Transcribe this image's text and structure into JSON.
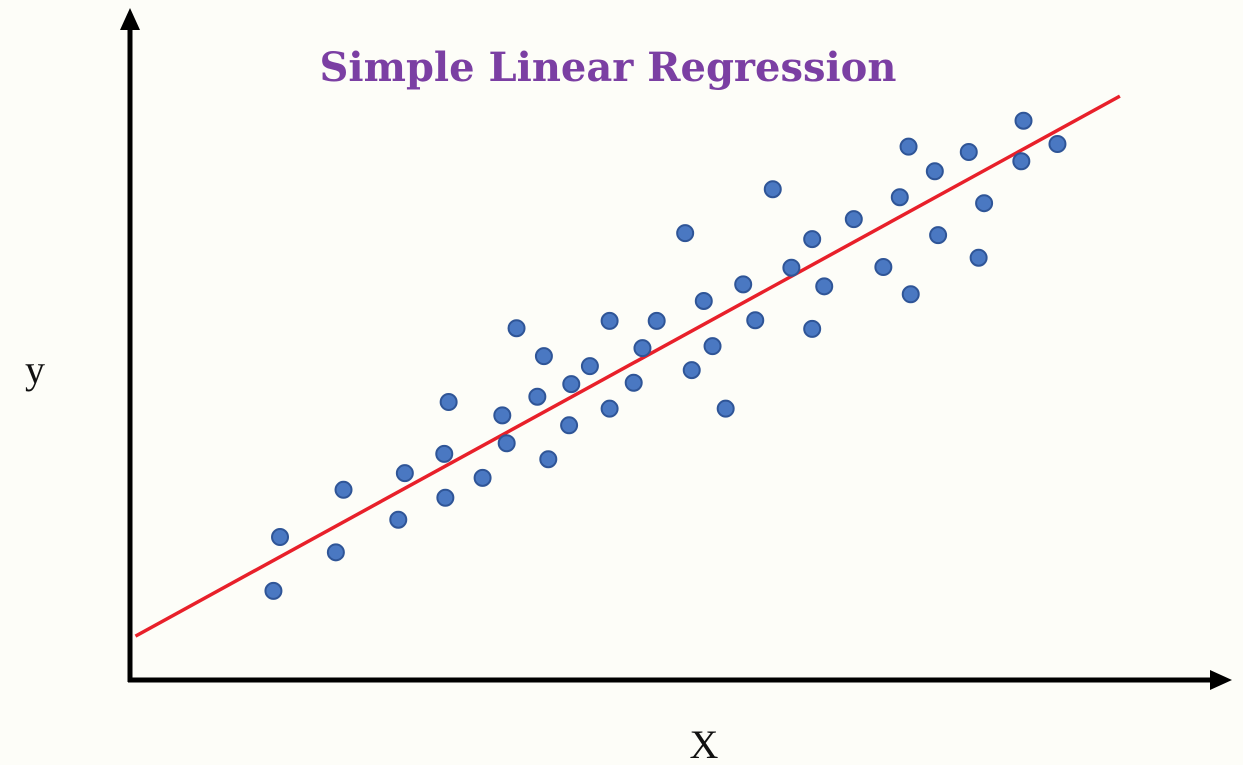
{
  "chart_data": {
    "type": "scatter",
    "title": "Simple Linear Regression",
    "x_label": "X",
    "y_label": "y",
    "xlim": [
      0,
      100
    ],
    "ylim": [
      0,
      100
    ],
    "color": "#4a78c2",
    "x": [
      13.1,
      13.7,
      18.8,
      19.5,
      24.5,
      25.1,
      28.7,
      28.8,
      29.1,
      32.2,
      34.0,
      34.4,
      35.3,
      37.2,
      37.8,
      38.2,
      40.1,
      40.3,
      42.0,
      43.8,
      43.8,
      46.0,
      46.8,
      48.1,
      50.7,
      51.3,
      52.4,
      53.2,
      54.4,
      56.0,
      57.1,
      58.7,
      60.4,
      62.3,
      62.3,
      63.4,
      66.1,
      68.8,
      70.3,
      71.1,
      71.3,
      73.5,
      73.8,
      76.6,
      77.5,
      78.0,
      81.4,
      81.6,
      84.7
    ],
    "values": [
      13.4,
      21.5,
      19.2,
      28.6,
      24.1,
      31.1,
      34.0,
      27.4,
      41.8,
      30.4,
      39.8,
      35.6,
      52.9,
      42.6,
      48.7,
      33.2,
      38.3,
      44.5,
      47.2,
      40.8,
      54.0,
      44.7,
      49.9,
      54.0,
      67.2,
      46.6,
      57.0,
      50.2,
      40.8,
      59.5,
      54.1,
      73.8,
      62.0,
      66.3,
      52.8,
      59.2,
      69.3,
      62.1,
      72.6,
      80.2,
      58.0,
      76.5,
      66.9,
      79.4,
      63.5,
      71.7,
      78.0,
      84.1,
      80.6
    ],
    "fit_line": {
      "color": "#e8202a",
      "x": [
        0.5,
        90.4
      ],
      "values": [
        6.6,
        87.8
      ]
    }
  }
}
